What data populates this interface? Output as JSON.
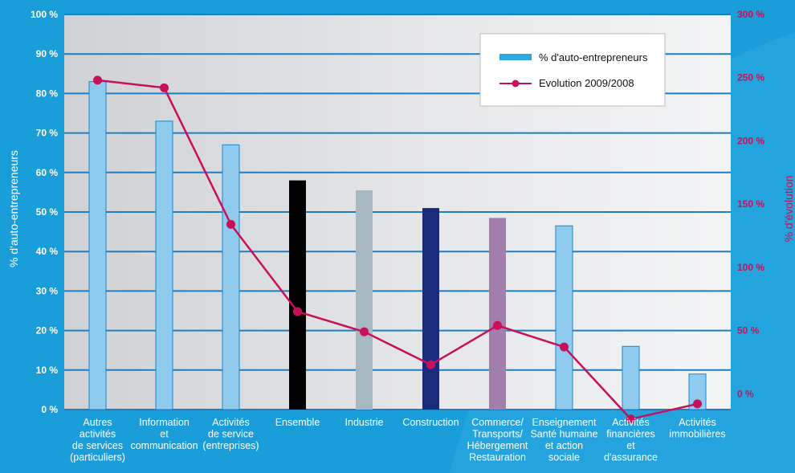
{
  "chart_data": {
    "type": "bar",
    "categories": [
      [
        "Autres",
        "activités",
        "de services",
        "(particuliers)"
      ],
      [
        "Information",
        "et",
        "communication"
      ],
      [
        "Activités",
        "de service",
        "(entreprises)"
      ],
      [
        "Ensemble"
      ],
      [
        "Industrie"
      ],
      [
        "Construction"
      ],
      [
        "Commerce/",
        "Transports/",
        "Hébergement",
        "Restauration"
      ],
      [
        "Enseignement",
        "Santé humaine",
        "et action",
        "sociale"
      ],
      [
        "Activités",
        "financières",
        "et",
        "d'assurance"
      ],
      [
        "Activités",
        "immobilières"
      ]
    ],
    "series": [
      {
        "name": "% d'auto-entrepreneurs",
        "axis": "left",
        "values": [
          83,
          73,
          67,
          58,
          55.5,
          51,
          48.5,
          46.5,
          16,
          9
        ]
      },
      {
        "name": "Evolution 2009/2008",
        "axis": "right",
        "values": [
          248,
          242,
          134,
          65,
          49,
          23,
          54,
          37,
          -20,
          -8
        ]
      }
    ],
    "bar_colors": [
      "#8ecbef",
      "#8ecbef",
      "#8ecbef",
      "#000000",
      "#a6b8c2",
      "#1a2b7c",
      "#a37dab",
      "#8ecbef",
      "#8ecbef",
      "#8ecbef"
    ],
    "line_color": "#c8105a",
    "ylabel": "% d'auto-entrepreneurs",
    "ylabel_right": "% d'évolution",
    "ylim": [
      0,
      100
    ],
    "ylim_right": [
      -12.5,
      300
    ],
    "yticks": [
      0,
      10,
      20,
      30,
      40,
      50,
      60,
      70,
      80,
      90,
      100
    ],
    "yticks_right": [
      0,
      50,
      100,
      150,
      200,
      250,
      300
    ],
    "ytick_suffix": " %",
    "grid": true,
    "legend_position": "top-right"
  }
}
